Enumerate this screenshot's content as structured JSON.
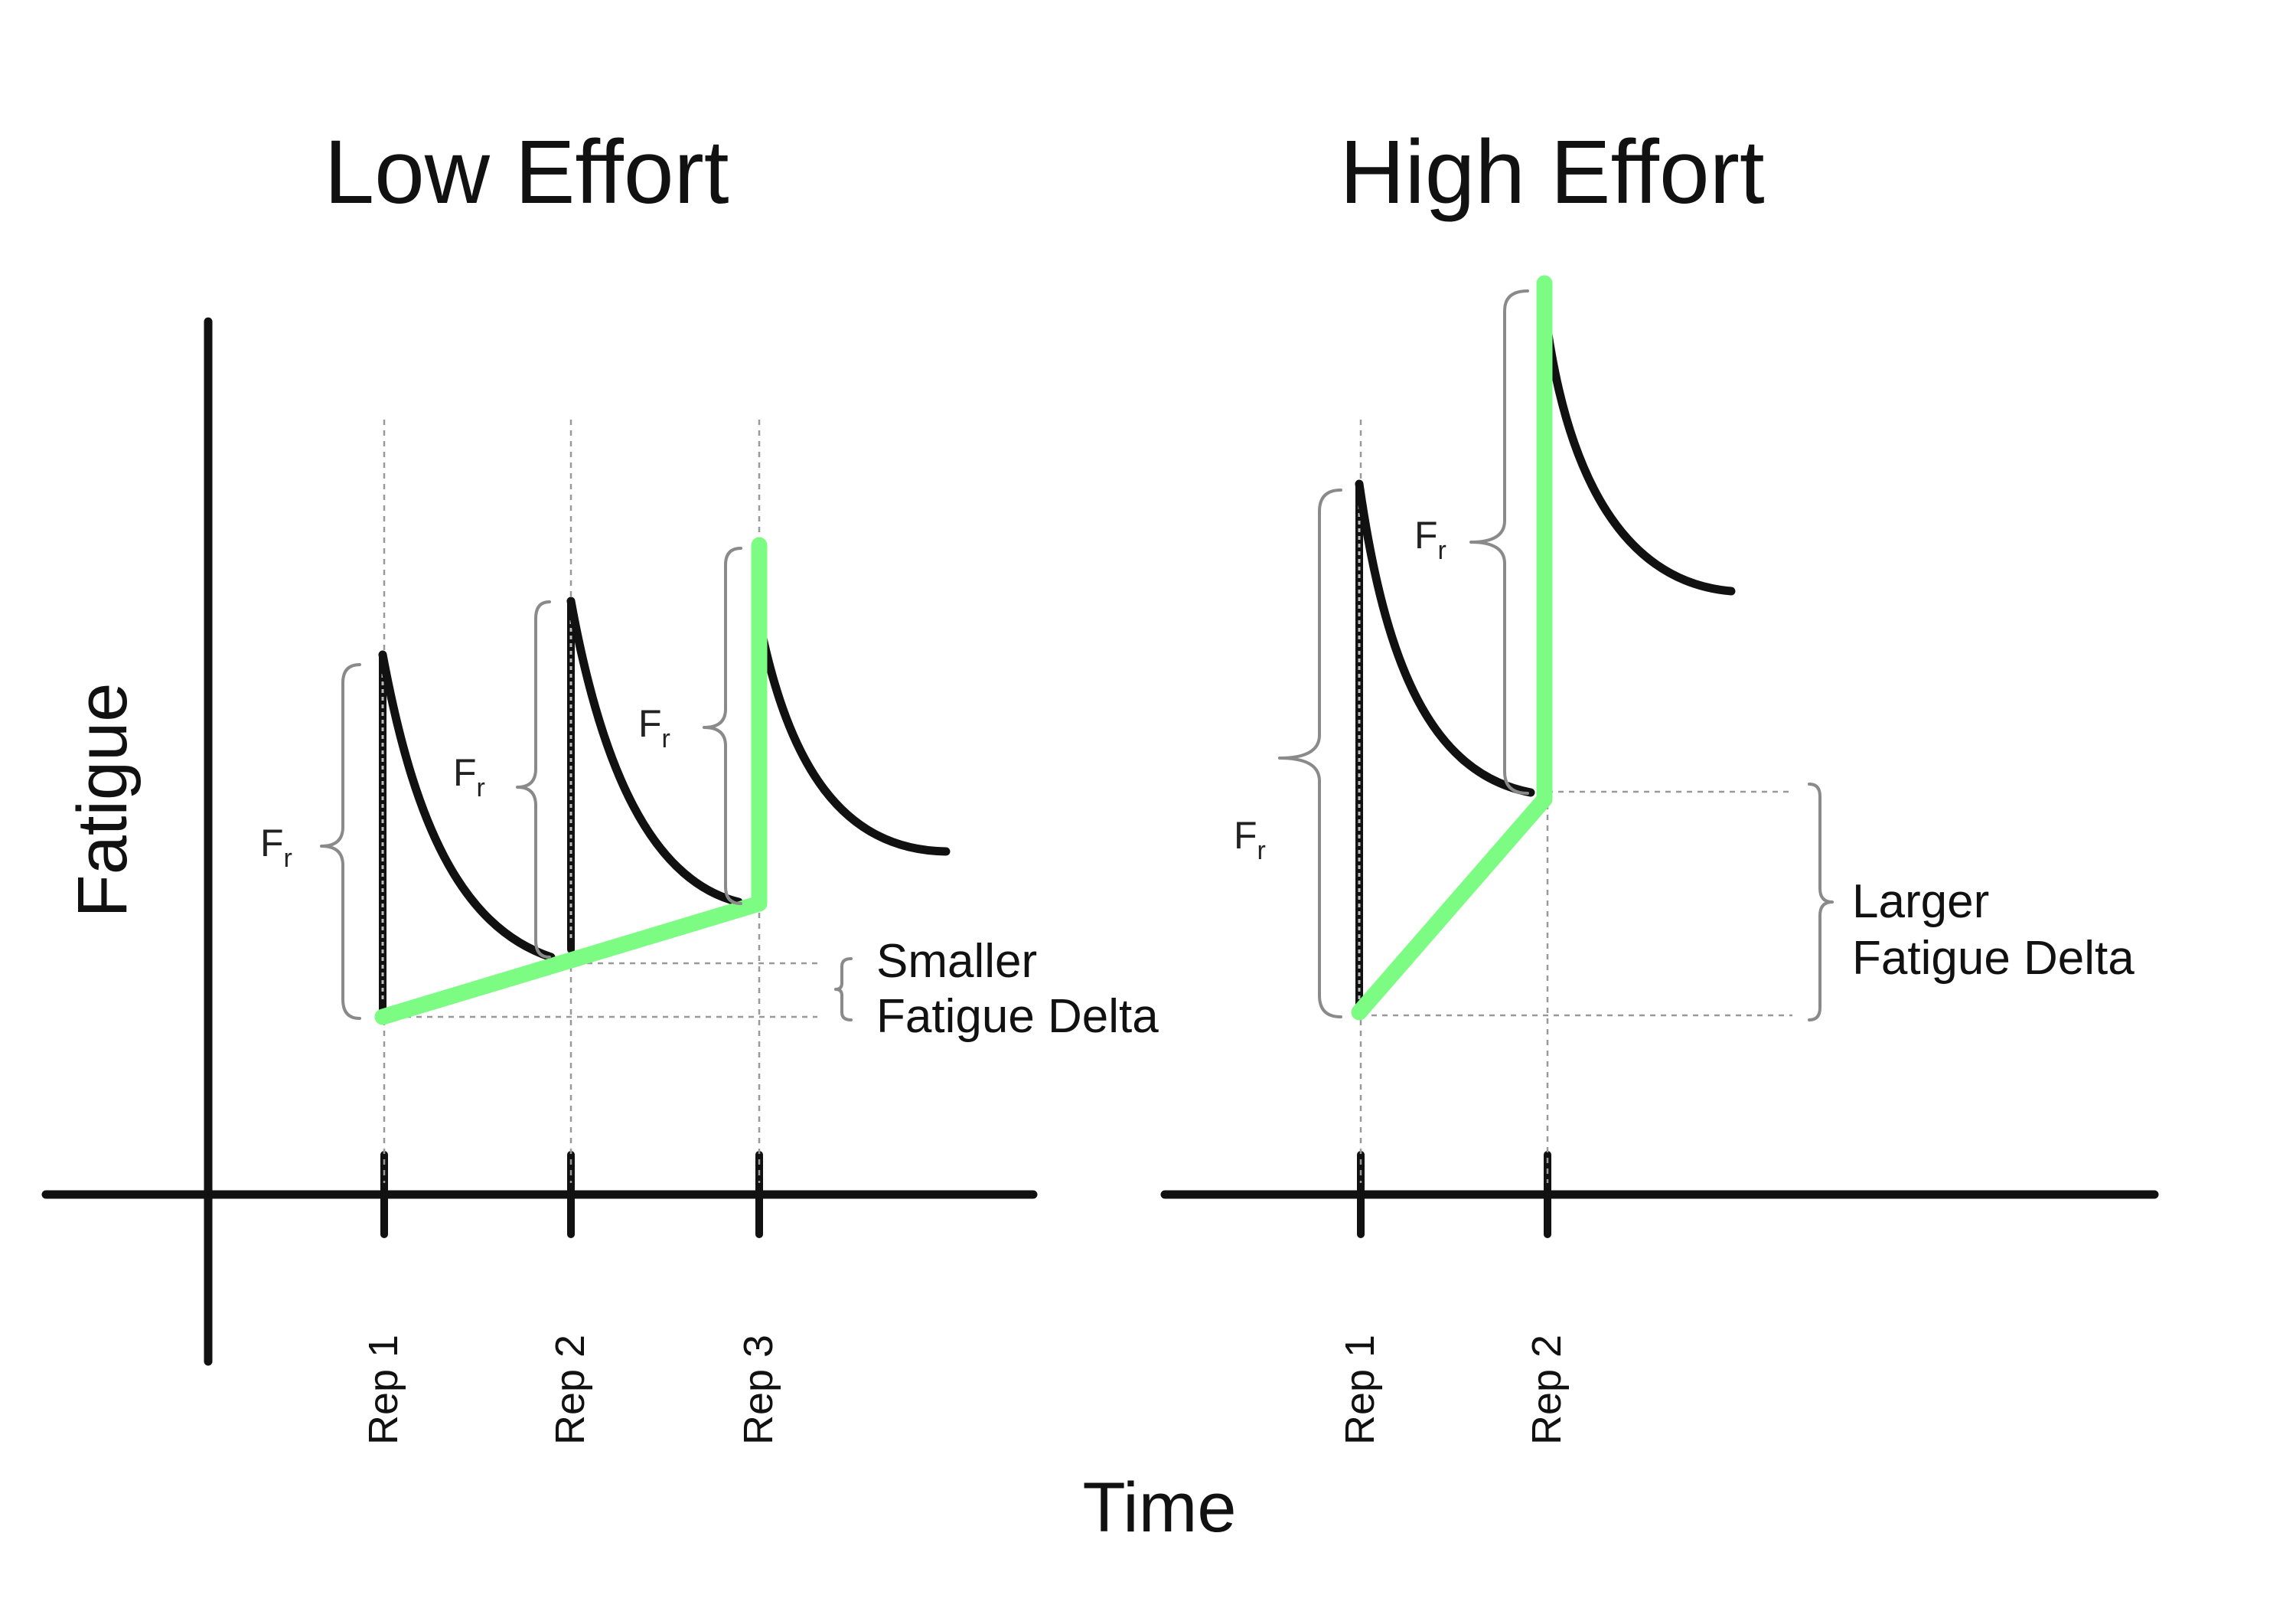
{
  "panels": {
    "low": {
      "title": "Low Effort",
      "rep_labels": [
        "Rep 1",
        "Rep 2",
        "Rep 3"
      ],
      "delta_note": [
        "Smaller",
        "Fatigue Delta"
      ]
    },
    "high": {
      "title": "High Effort",
      "rep_labels": [
        "Rep 1",
        "Rep 2"
      ],
      "delta_note": [
        "Larger",
        "Fatigue Delta"
      ]
    }
  },
  "axes": {
    "y_label": "Fatigue",
    "x_label": "Time"
  },
  "brace_label": {
    "main": "F",
    "sub": "r"
  },
  "colors": {
    "effort_line": "#7cfc83",
    "curve": "#111111",
    "guide": "#999999"
  }
}
